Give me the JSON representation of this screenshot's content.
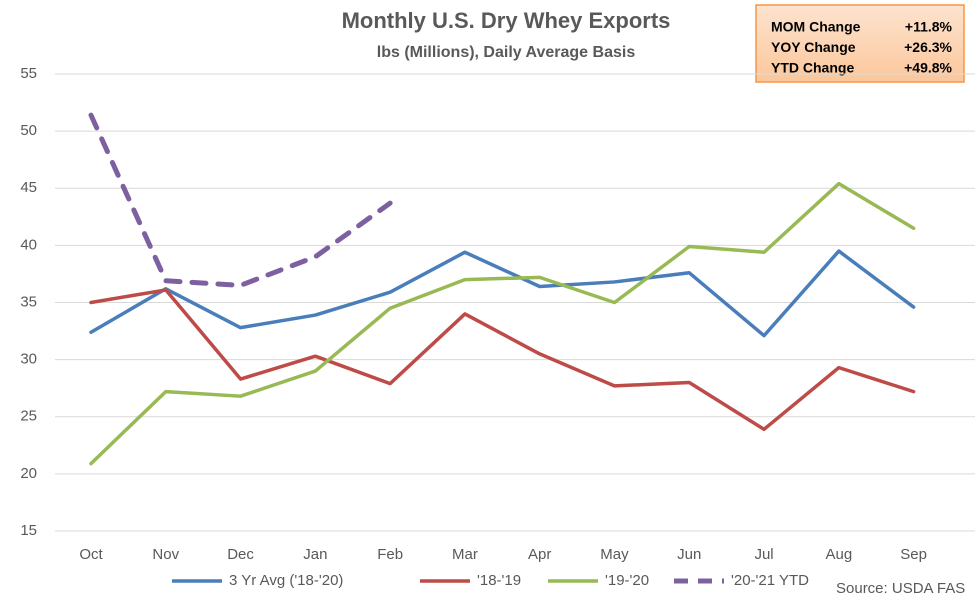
{
  "chart_data": {
    "type": "line",
    "title": "Monthly U.S. Dry Whey Exports",
    "subtitle": "lbs (Millions), Daily Average Basis",
    "categories": [
      "Oct",
      "Nov",
      "Dec",
      "Jan",
      "Feb",
      "Mar",
      "Apr",
      "May",
      "Jun",
      "Jul",
      "Aug",
      "Sep"
    ],
    "series": [
      {
        "name": "3 Yr Avg ('18-'20)",
        "color": "#4a7ebb",
        "values": [
          32.4,
          36.2,
          32.8,
          33.9,
          35.9,
          39.4,
          36.4,
          36.8,
          37.6,
          32.1,
          39.5,
          34.6
        ]
      },
      {
        "name": "'18-'19",
        "color": "#be4b48",
        "values": [
          35.0,
          36.1,
          28.3,
          30.3,
          27.9,
          34.0,
          30.5,
          27.7,
          28.0,
          23.9,
          29.3,
          27.2
        ]
      },
      {
        "name": "'19-'20",
        "color": "#98b954",
        "values": [
          20.9,
          27.2,
          26.8,
          29.0,
          34.5,
          37.0,
          37.2,
          35.0,
          39.9,
          39.4,
          45.4,
          41.5
        ]
      },
      {
        "name": "'20-'21 YTD",
        "color": "#7d60a0",
        "dashed": true,
        "values": [
          51.4,
          36.9,
          36.5,
          39.0,
          43.7,
          null,
          null,
          null,
          null,
          null,
          null,
          null
        ]
      }
    ],
    "ylim": [
      15,
      55
    ],
    "yticks": [
      15,
      20,
      25,
      30,
      35,
      40,
      45,
      50,
      55
    ],
    "grid": true,
    "legend": "bottom",
    "source": "Source: USDA FAS",
    "summary": [
      {
        "label": "MOM Change",
        "value": "+11.8%"
      },
      {
        "label": "YOY Change",
        "value": "+26.3%"
      },
      {
        "label": "YTD Change",
        "value": "+49.8%"
      }
    ]
  }
}
